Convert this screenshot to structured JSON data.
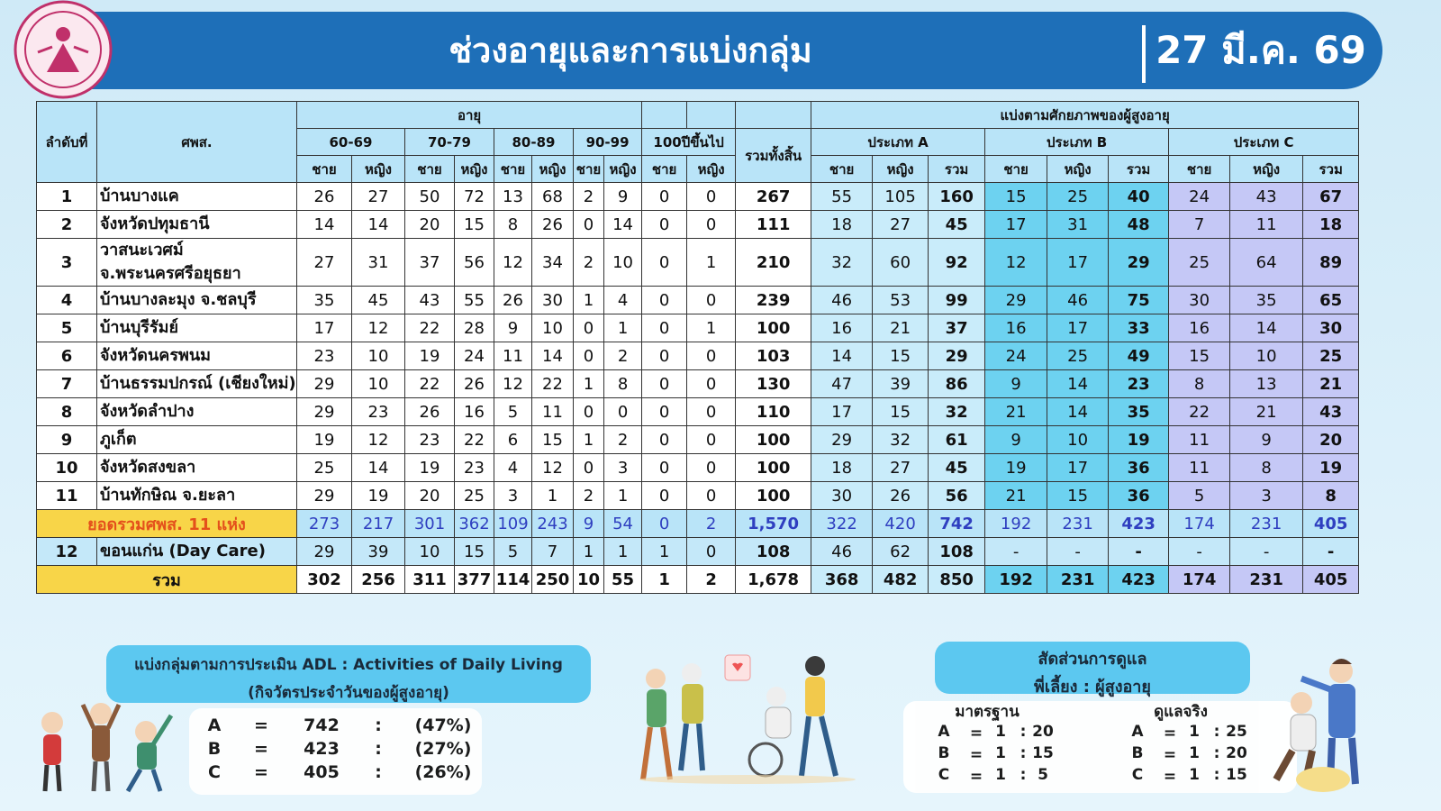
{
  "header": {
    "title": "ช่วงอายุและการแบ่งกลุ่ม",
    "date": "27 มี.ค. 69"
  },
  "table": {
    "headers": {
      "no": "ลำดับที่",
      "center": "ศพส.",
      "age": "อายุ",
      "age_groups": [
        "60-69",
        "70-79",
        "80-89",
        "90-99",
        "100ปีขึ้นไป"
      ],
      "grand_total": "รวมทั้งสิ้น",
      "potential": "แบ่งตามศักยภาพของผู้สูงอายุ",
      "types": [
        "ประเภท A",
        "ประเภท B",
        "ประเภท C"
      ],
      "male": "ชาย",
      "female": "หญิง",
      "sum": "รวม"
    },
    "rows": [
      {
        "no": 1,
        "name": "บ้านบางแค",
        "age": [
          26,
          27,
          50,
          72,
          13,
          68,
          2,
          9,
          0,
          0
        ],
        "total": 267,
        "types": [
          55,
          105,
          160,
          15,
          25,
          40,
          24,
          43,
          67
        ]
      },
      {
        "no": 2,
        "name": "จังหวัดปทุมธานี",
        "age": [
          14,
          14,
          20,
          15,
          8,
          26,
          0,
          14,
          0,
          0
        ],
        "total": 111,
        "types": [
          18,
          27,
          45,
          17,
          31,
          48,
          7,
          11,
          18
        ]
      },
      {
        "no": 3,
        "name": "วาสนะเวศม์\nจ.พระนครศรีอยุธยา",
        "age": [
          27,
          31,
          37,
          56,
          12,
          34,
          2,
          10,
          0,
          1
        ],
        "total": 210,
        "types": [
          32,
          60,
          92,
          12,
          17,
          29,
          25,
          64,
          89
        ]
      },
      {
        "no": 4,
        "name": "บ้านบางละมุง จ.ชลบุรี",
        "age": [
          35,
          45,
          43,
          55,
          26,
          30,
          1,
          4,
          0,
          0
        ],
        "total": 239,
        "types": [
          46,
          53,
          99,
          29,
          46,
          75,
          30,
          35,
          65
        ]
      },
      {
        "no": 5,
        "name": "บ้านบุรีรัมย์",
        "age": [
          17,
          12,
          22,
          28,
          9,
          10,
          0,
          1,
          0,
          1
        ],
        "total": 100,
        "types": [
          16,
          21,
          37,
          16,
          17,
          33,
          16,
          14,
          30
        ]
      },
      {
        "no": 6,
        "name": "จังหวัดนครพนม",
        "age": [
          23,
          10,
          19,
          24,
          11,
          14,
          0,
          2,
          0,
          0
        ],
        "total": 103,
        "types": [
          14,
          15,
          29,
          24,
          25,
          49,
          15,
          10,
          25
        ]
      },
      {
        "no": 7,
        "name": "บ้านธรรมปกรณ์ (เชียงใหม่)",
        "age": [
          29,
          10,
          22,
          26,
          12,
          22,
          1,
          8,
          0,
          0
        ],
        "total": 130,
        "types": [
          47,
          39,
          86,
          9,
          14,
          23,
          8,
          13,
          21
        ]
      },
      {
        "no": 8,
        "name": "จังหวัดลำปาง",
        "age": [
          29,
          23,
          26,
          16,
          5,
          11,
          0,
          0,
          0,
          0
        ],
        "total": 110,
        "types": [
          17,
          15,
          32,
          21,
          14,
          35,
          22,
          21,
          43
        ]
      },
      {
        "no": 9,
        "name": "ภูเก็ต",
        "age": [
          19,
          12,
          23,
          22,
          6,
          15,
          1,
          2,
          0,
          0
        ],
        "total": 100,
        "types": [
          29,
          32,
          61,
          9,
          10,
          19,
          11,
          9,
          20
        ]
      },
      {
        "no": 10,
        "name": "จังหวัดสงขลา",
        "age": [
          25,
          14,
          19,
          23,
          4,
          12,
          0,
          3,
          0,
          0
        ],
        "total": 100,
        "types": [
          18,
          27,
          45,
          19,
          17,
          36,
          11,
          8,
          19
        ]
      },
      {
        "no": 11,
        "name": "บ้านทักษิณ จ.ยะลา",
        "age": [
          29,
          19,
          20,
          25,
          3,
          1,
          2,
          1,
          0,
          0
        ],
        "total": 100,
        "types": [
          30,
          26,
          56,
          21,
          15,
          36,
          5,
          3,
          8
        ]
      }
    ],
    "subtotal": {
      "label": "ยอดรวมศพส. 11 แห่ง",
      "age": [
        273,
        217,
        301,
        362,
        109,
        243,
        9,
        54,
        0,
        2
      ],
      "total": "1,570",
      "types": [
        322,
        420,
        742,
        192,
        231,
        423,
        174,
        231,
        405
      ]
    },
    "day_care": {
      "no": 12,
      "name": "ขอนแก่น (Day Care)",
      "age": [
        29,
        39,
        10,
        15,
        5,
        7,
        1,
        1,
        1,
        0
      ],
      "total": 108,
      "types": [
        46,
        62,
        108,
        "-",
        "-",
        "-",
        "-",
        "-",
        "-"
      ]
    },
    "total": {
      "label": "รวม",
      "age": [
        302,
        256,
        311,
        377,
        114,
        250,
        10,
        55,
        1,
        2
      ],
      "total": "1,678",
      "types": [
        368,
        482,
        850,
        192,
        231,
        423,
        174,
        231,
        405
      ]
    }
  },
  "adl": {
    "title": "แบ่งกลุ่มตามการประเมิน ADL : Activities of Daily Living",
    "subtitle": "(กิจวัตรประจำวันของผู้สูงอายุ)",
    "equals": "=",
    "colon": ":",
    "groups": [
      {
        "group": "A",
        "count": 742,
        "percent": "(47%)"
      },
      {
        "group": "B",
        "count": 423,
        "percent": "(27%)"
      },
      {
        "group": "C",
        "count": 405,
        "percent": "(26%)"
      }
    ]
  },
  "care_ratio": {
    "title": "สัดส่วนการดูแล",
    "subtitle": "พี่เลี้ยง : ผู้สูงอายุ",
    "equals": "=",
    "colon": ":",
    "standard": {
      "label": "มาตรฐาน",
      "rows": [
        {
          "group": "A",
          "caregiver": 1,
          "elderly": 20
        },
        {
          "group": "B",
          "caregiver": 1,
          "elderly": 15
        },
        {
          "group": "C",
          "caregiver": 1,
          "elderly": 5
        }
      ]
    },
    "actual": {
      "label": "ดูแลจริง",
      "rows": [
        {
          "group": "A",
          "caregiver": 1,
          "elderly": 25
        },
        {
          "group": "B",
          "caregiver": 1,
          "elderly": 20
        },
        {
          "group": "C",
          "caregiver": 1,
          "elderly": 15
        }
      ]
    }
  }
}
